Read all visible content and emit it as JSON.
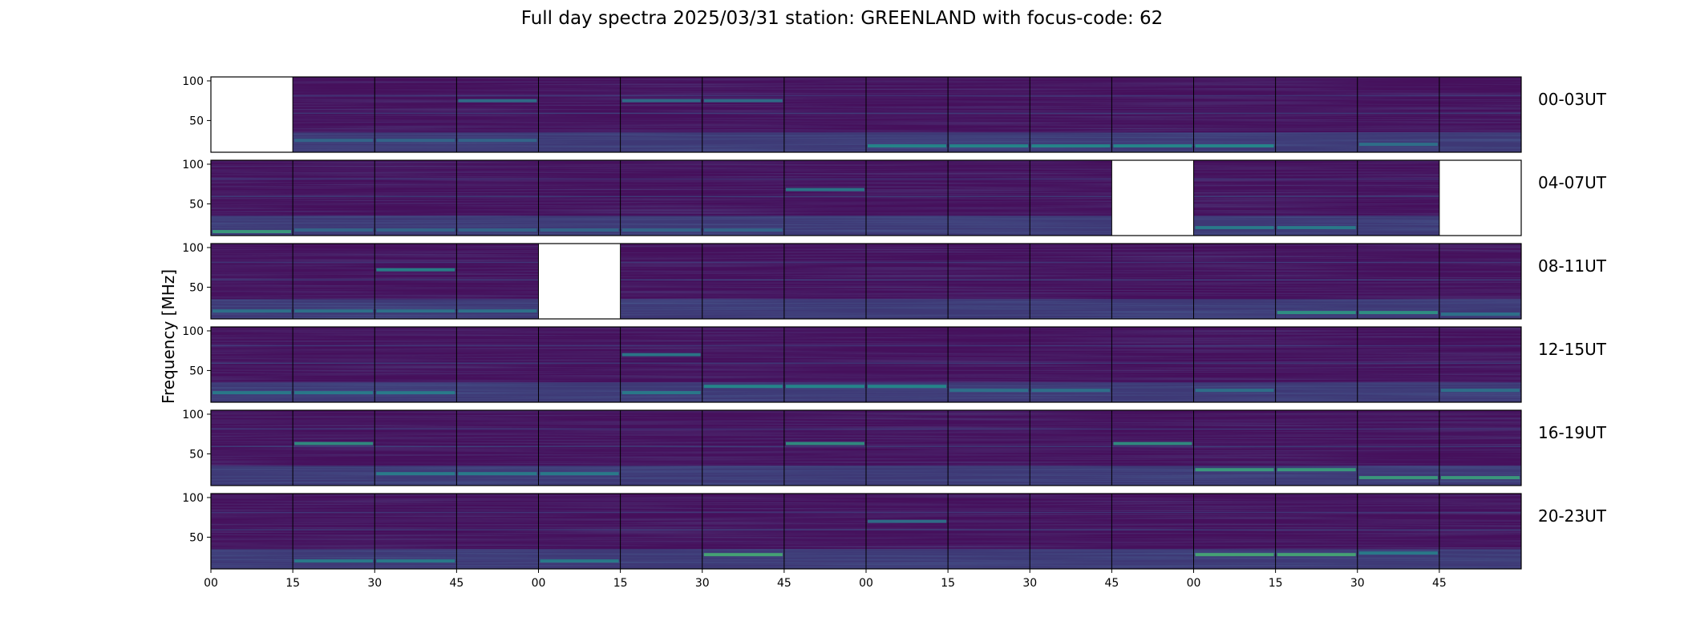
{
  "title": "Full day spectra 2025/03/31 station: GREENLAND with focus-code: 62",
  "chart_data": {
    "type": "heatmap",
    "title": "Full day spectra 2025/03/31 station: GREENLAND with focus-code: 62",
    "ylabel": "Frequency [MHz]",
    "xlabel": "",
    "colormap": "viridis",
    "background_color": "#46105c",
    "ylim": [
      10,
      105
    ],
    "yticks": [
      50,
      100
    ],
    "xticks": [
      "00",
      "15",
      "30",
      "45",
      "00",
      "15",
      "30",
      "45",
      "00",
      "15",
      "30",
      "45",
      "00",
      "15",
      "30",
      "45"
    ],
    "panels_per_row": 16,
    "panel_minutes": 15,
    "rows": [
      {
        "label": "00-03UT",
        "missing_panels": [
          0
        ],
        "bright_bands": [
          [
            20,
            0.25,
            [
              14
            ]
          ],
          [
            18,
            0.35,
            [
              8,
              9,
              10,
              11,
              12
            ]
          ],
          [
            25,
            0.2,
            [
              1,
              2,
              3
            ]
          ],
          [
            75,
            0.25,
            [
              3,
              5,
              6
            ]
          ]
        ]
      },
      {
        "label": "04-07UT",
        "missing_panels": [
          11,
          15
        ],
        "bright_bands": [
          [
            15,
            0.45,
            [
              0
            ]
          ],
          [
            68,
            0.3,
            [
              7
            ]
          ],
          [
            17,
            0.2,
            [
              1,
              2,
              3,
              4,
              5,
              6
            ]
          ],
          [
            20,
            0.3,
            [
              12,
              13
            ]
          ]
        ]
      },
      {
        "label": "08-11UT",
        "missing_panels": [
          4
        ],
        "bright_bands": [
          [
            72,
            0.35,
            [
              2
            ]
          ],
          [
            18,
            0.4,
            [
              13,
              14
            ]
          ],
          [
            20,
            0.25,
            [
              0,
              1,
              2,
              3
            ]
          ],
          [
            16,
            0.25,
            [
              15
            ]
          ]
        ]
      },
      {
        "label": "12-15UT",
        "missing_panels": [],
        "bright_bands": [
          [
            22,
            0.3,
            [
              0,
              1,
              2,
              5
            ]
          ],
          [
            30,
            0.35,
            [
              6,
              7,
              8
            ]
          ],
          [
            70,
            0.3,
            [
              5
            ]
          ],
          [
            25,
            0.25,
            [
              9,
              10,
              12,
              15
            ]
          ]
        ]
      },
      {
        "label": "16-19UT",
        "missing_panels": [],
        "bright_bands": [
          [
            30,
            0.45,
            [
              12,
              13
            ]
          ],
          [
            63,
            0.4,
            [
              1,
              7,
              11
            ]
          ],
          [
            20,
            0.45,
            [
              14,
              15
            ]
          ],
          [
            25,
            0.3,
            [
              2,
              3,
              4
            ]
          ]
        ]
      },
      {
        "label": "20-23UT",
        "missing_panels": [],
        "bright_bands": [
          [
            28,
            0.5,
            [
              6,
              12,
              13
            ]
          ],
          [
            20,
            0.3,
            [
              1,
              2,
              4
            ]
          ],
          [
            70,
            0.25,
            [
              8
            ]
          ],
          [
            30,
            0.3,
            [
              14
            ]
          ]
        ]
      }
    ]
  }
}
